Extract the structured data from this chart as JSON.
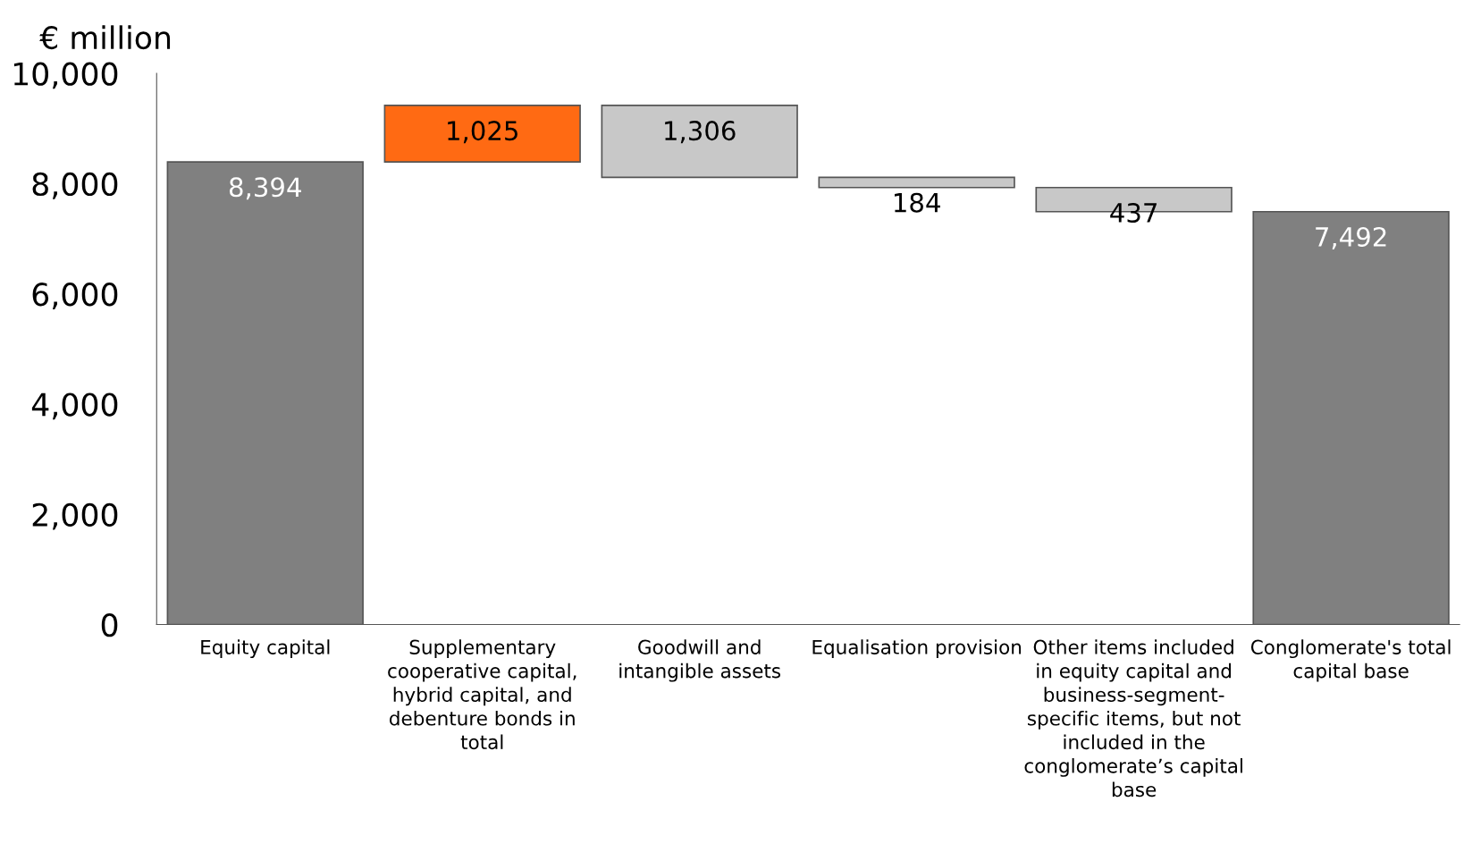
{
  "chart_data": {
    "type": "bar",
    "ylabel": "€ million",
    "categories": [
      "Equity capital",
      "Supplementary\ncooperative capital,\nhybrid capital, and\ndebenture bonds in\ntotal",
      "Goodwill and\nintangible assets",
      "Equalisation provision",
      "Other items included\nin equity capital and\nbusiness-segment-\nspecific items, but not\nincluded in the\nconglomerate’s capital\nbase",
      "Conglomerate's total\ncapital base"
    ],
    "values": [
      8394,
      1025,
      -1306,
      -184,
      -437,
      7492
    ],
    "base": [
      0,
      8394,
      9419,
      8113,
      7929,
      0
    ],
    "colors": [
      "#808080",
      "#ff6a13",
      "#c8c8c8",
      "#c8c8c8",
      "#c8c8c8",
      "#808080"
    ],
    "value_labels": [
      "8,394",
      "1,025",
      "1,306",
      "184",
      "437",
      "7,492"
    ],
    "ylim": [
      0,
      10000
    ],
    "yticks": [
      {
        "value": 0,
        "label": "0"
      },
      {
        "value": 2000,
        "label": "2,000"
      },
      {
        "value": 4000,
        "label": "4,000"
      },
      {
        "value": 6000,
        "label": "6,000"
      },
      {
        "value": 8000,
        "label": "8,000"
      },
      {
        "value": 10000,
        "label": "10,000"
      }
    ],
    "grid": false,
    "legend": false
  }
}
